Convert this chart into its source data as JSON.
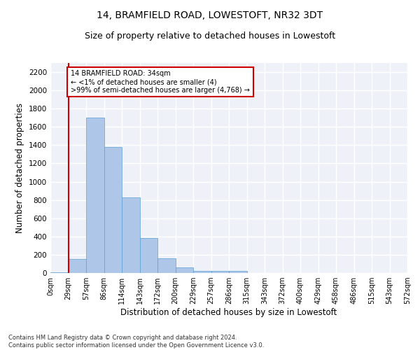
{
  "title": "14, BRAMFIELD ROAD, LOWESTOFT, NR32 3DT",
  "subtitle": "Size of property relative to detached houses in Lowestoft",
  "xlabel": "Distribution of detached houses by size in Lowestoft",
  "ylabel": "Number of detached properties",
  "footer_line1": "Contains HM Land Registry data © Crown copyright and database right 2024.",
  "footer_line2": "Contains public sector information licensed under the Open Government Licence v3.0.",
  "bin_labels": [
    "0sqm",
    "29sqm",
    "57sqm",
    "86sqm",
    "114sqm",
    "143sqm",
    "172sqm",
    "200sqm",
    "229sqm",
    "257sqm",
    "286sqm",
    "315sqm",
    "343sqm",
    "372sqm",
    "400sqm",
    "429sqm",
    "458sqm",
    "486sqm",
    "515sqm",
    "543sqm",
    "572sqm"
  ],
  "bar_heights": [
    4,
    150,
    1700,
    1380,
    830,
    380,
    160,
    60,
    20,
    20,
    20,
    0,
    0,
    0,
    0,
    0,
    0,
    0,
    0,
    0
  ],
  "bar_color": "#aec6e8",
  "bar_edge_color": "#5a9fd4",
  "property_line_x": 1,
  "property_line_color": "#cc0000",
  "annotation_line1": "14 BRAMFIELD ROAD: 34sqm",
  "annotation_line2": "← <1% of detached houses are smaller (4)",
  "annotation_line3": ">99% of semi-detached houses are larger (4,768) →",
  "annotation_box_color": "#cc0000",
  "ylim": [
    0,
    2300
  ],
  "yticks": [
    0,
    200,
    400,
    600,
    800,
    1000,
    1200,
    1400,
    1600,
    1800,
    2000,
    2200
  ],
  "background_color": "#eef2f8",
  "grid_color": "#ffffff",
  "title_fontsize": 10,
  "subtitle_fontsize": 9,
  "xlabel_fontsize": 8.5,
  "ylabel_fontsize": 8.5
}
